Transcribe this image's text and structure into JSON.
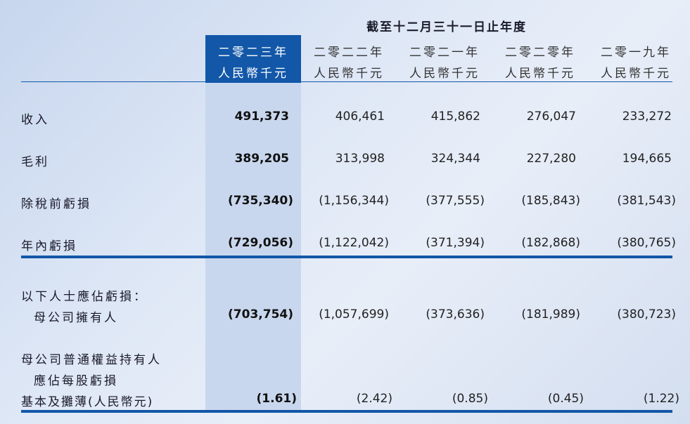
{
  "period_heading": "截至十二月三十一日止年度",
  "columns": [
    {
      "year": "二零二三年",
      "unit": "人民幣千元"
    },
    {
      "year": "二零二二年",
      "unit": "人民幣千元"
    },
    {
      "year": "二零二一年",
      "unit": "人民幣千元"
    },
    {
      "year": "二零二零年",
      "unit": "人民幣千元"
    },
    {
      "year": "二零一九年",
      "unit": "人民幣千元"
    }
  ],
  "rows": [
    {
      "label": "收入",
      "values": [
        "491,373",
        "406,461",
        "415,862",
        "276,047",
        "233,272"
      ]
    },
    {
      "label": "毛利",
      "values": [
        "389,205",
        "313,998",
        "324,344",
        "227,280",
        "194,665"
      ]
    },
    {
      "label": "除稅前虧損",
      "values": [
        "(735,340)",
        "(1,156,344)",
        "(377,555)",
        "(185,843)",
        "(381,543)"
      ]
    },
    {
      "label": "年內虧損",
      "values": [
        "(729,056)",
        "(1,122,042)",
        "(371,394)",
        "(182,868)",
        "(380,765)"
      ]
    },
    {
      "label": "以下人士應佔虧損：",
      "values": []
    },
    {
      "label": "母公司擁有人",
      "values": [
        "(703,754)",
        "(1,057,699)",
        "(373,636)",
        "(181,989)",
        "(380,723)"
      ]
    },
    {
      "label": "母公司普通權益持有人",
      "values": []
    },
    {
      "label": "應佔每股虧損",
      "values": []
    },
    {
      "label": "基本及攤薄(人民幣元)",
      "values": [
        "(1.61)",
        "(2.42)",
        "(0.85)",
        "(0.45)",
        "(1.22)"
      ]
    }
  ]
}
